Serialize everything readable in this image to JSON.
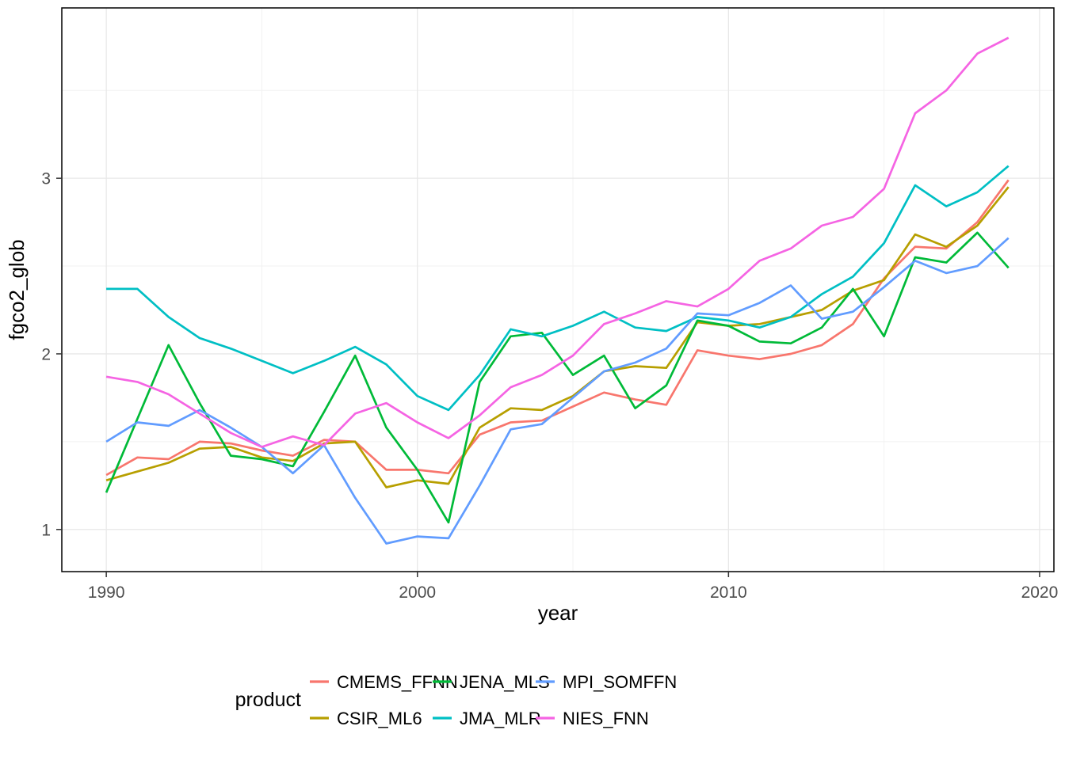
{
  "chart_data": {
    "type": "line",
    "title": "",
    "xlabel": "year",
    "ylabel": "fgco2_glob",
    "legend_title": "product",
    "legend_position": "bottom",
    "grid": true,
    "panel_border_color": "#000000",
    "major_grid_color": "#e8e8e8",
    "minor_grid_color": "#f2f2f2",
    "tick_color": "#333333",
    "xlim": [
      1988.57,
      2020.46
    ],
    "ylim": [
      0.76,
      3.97
    ],
    "x_ticks": [
      1990,
      2000,
      2010,
      2020
    ],
    "x_tick_labels": [
      "1990",
      "2000",
      "2010",
      "2020"
    ],
    "y_ticks": [
      1,
      2,
      3
    ],
    "y_tick_labels": [
      "1",
      "2",
      "3"
    ],
    "x_minor_ticks": [
      1995,
      2005,
      2015
    ],
    "y_minor_ticks": [
      1.5,
      2.5,
      3.5
    ],
    "x": [
      1990,
      1991,
      1992,
      1993,
      1994,
      1995,
      1996,
      1997,
      1998,
      1999,
      2000,
      2001,
      2002,
      2003,
      2004,
      2005,
      2006,
      2007,
      2008,
      2009,
      2010,
      2011,
      2012,
      2013,
      2014,
      2015,
      2016,
      2017,
      2018,
      2019
    ],
    "series": [
      {
        "name": "CMEMS_FFNN",
        "color": "#F8766D",
        "values": [
          1.31,
          1.41,
          1.4,
          1.5,
          1.49,
          1.45,
          1.42,
          1.51,
          1.5,
          1.34,
          1.34,
          1.32,
          1.54,
          1.61,
          1.62,
          1.7,
          1.78,
          1.74,
          1.71,
          2.02,
          1.99,
          1.97,
          2.0,
          2.05,
          2.17,
          2.43,
          2.61,
          2.6,
          2.75,
          2.99
        ]
      },
      {
        "name": "CSIR_ML6",
        "color": "#B79F00",
        "values": [
          1.28,
          1.33,
          1.38,
          1.46,
          1.47,
          1.41,
          1.39,
          1.49,
          1.5,
          1.24,
          1.28,
          1.26,
          1.58,
          1.69,
          1.68,
          1.76,
          1.9,
          1.93,
          1.92,
          2.18,
          2.16,
          2.17,
          2.21,
          2.25,
          2.36,
          2.42,
          2.68,
          2.61,
          2.73,
          2.95
        ]
      },
      {
        "name": "JENA_MLS",
        "color": "#00BA38",
        "values": [
          1.21,
          1.63,
          2.05,
          1.72,
          1.42,
          1.4,
          1.36,
          1.67,
          1.99,
          1.58,
          1.34,
          1.04,
          1.84,
          2.1,
          2.12,
          1.88,
          1.99,
          1.69,
          1.82,
          2.19,
          2.16,
          2.07,
          2.06,
          2.15,
          2.37,
          2.1,
          2.55,
          2.52,
          2.69,
          2.49
        ]
      },
      {
        "name": "JMA_MLR",
        "color": "#00BFC4",
        "values": [
          2.37,
          2.37,
          2.21,
          2.09,
          2.03,
          1.96,
          1.89,
          1.96,
          2.04,
          1.94,
          1.76,
          1.68,
          1.88,
          2.14,
          2.1,
          2.16,
          2.24,
          2.15,
          2.13,
          2.21,
          2.19,
          2.15,
          2.21,
          2.34,
          2.44,
          2.63,
          2.96,
          2.84,
          2.92,
          3.07
        ]
      },
      {
        "name": "MPI_SOMFFN",
        "color": "#619CFF",
        "values": [
          1.5,
          1.61,
          1.59,
          1.68,
          1.58,
          1.47,
          1.32,
          1.48,
          1.18,
          0.92,
          0.96,
          0.95,
          1.25,
          1.57,
          1.6,
          1.75,
          1.9,
          1.95,
          2.03,
          2.23,
          2.22,
          2.29,
          2.39,
          2.2,
          2.24,
          2.38,
          2.53,
          2.46,
          2.5,
          2.66
        ]
      },
      {
        "name": "NIES_FNN",
        "color": "#F564E3",
        "values": [
          1.87,
          1.84,
          1.77,
          1.66,
          1.55,
          1.47,
          1.53,
          1.48,
          1.66,
          1.72,
          1.61,
          1.52,
          1.65,
          1.81,
          1.88,
          1.99,
          2.17,
          2.23,
          2.3,
          2.27,
          2.37,
          2.53,
          2.6,
          2.73,
          2.78,
          2.94,
          3.37,
          3.5,
          3.71,
          3.8
        ]
      }
    ]
  }
}
